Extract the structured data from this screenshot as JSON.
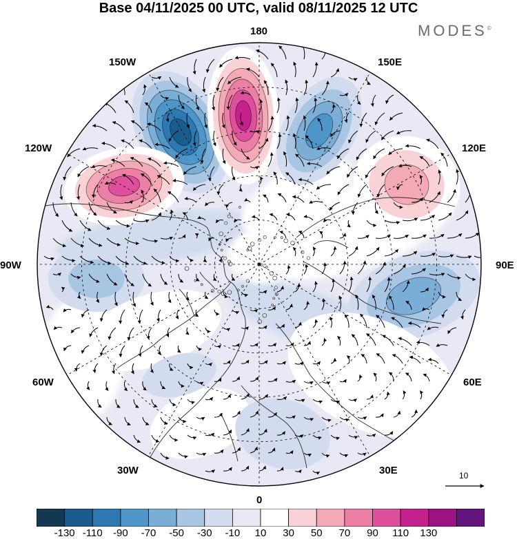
{
  "title": "Base 04/11/2025 00 UTC, valid 08/11/2025 12 UTC",
  "brand": "MODES",
  "brand_mark": "©",
  "longitude_labels": {
    "top": "180",
    "bottom": "0",
    "left": "90W",
    "right": "90E",
    "upper_left": "150W",
    "upper_right": "150E",
    "mid_upper_left": "120W",
    "mid_upper_right": "120E",
    "mid_lower_left": "60W",
    "mid_lower_right": "60E",
    "lower_left": "30W",
    "lower_right": "30E"
  },
  "vector_scale": {
    "label": "10"
  },
  "colorbar": {
    "tick_labels": [
      "-130",
      "-110",
      "-90",
      "-70",
      "-50",
      "-30",
      "-10",
      "10",
      "30",
      "50",
      "70",
      "90",
      "110",
      "130"
    ],
    "colors": [
      "#13384f",
      "#1a5c8e",
      "#2d7ab3",
      "#4e95c8",
      "#7aaed7",
      "#a8c5e3",
      "#d2dcee",
      "#e8e9f4",
      "#ffffff",
      "#f9d2d6",
      "#f3aab6",
      "#ec7fa6",
      "#de4f9c",
      "#c5218d",
      "#9c1282",
      "#63147d"
    ]
  },
  "anomalies": [
    {
      "id": "trough-150w",
      "value": -130
    },
    {
      "id": "ridge-180",
      "value": 130
    },
    {
      "id": "trough-150e",
      "value": -90
    },
    {
      "id": "ridge-120w",
      "value": 110
    },
    {
      "id": "ridge-120e",
      "value": 70
    },
    {
      "id": "trough-90w",
      "value": -50
    },
    {
      "id": "trough-90e",
      "value": -70
    },
    {
      "id": "ridge-60e",
      "value": 30
    },
    {
      "id": "ridge-70w",
      "value": 30
    },
    {
      "id": "ridge-30w",
      "value": 30
    },
    {
      "id": "trough-30e",
      "value": -30
    },
    {
      "id": "trough-60w",
      "value": -30
    }
  ]
}
